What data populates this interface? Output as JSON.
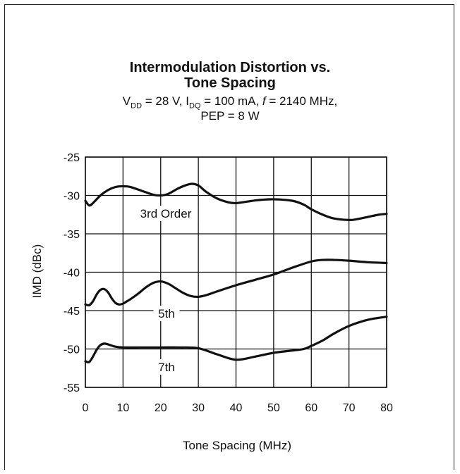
{
  "chart_data": {
    "type": "line",
    "title_line1": "Intermodulation Distortion vs.",
    "title_line2": "Tone Spacing",
    "subtitle_line1": {
      "v": "V",
      "v_sub": "DD",
      "v_rest": " = 28 V, I",
      "i_sub": "DQ",
      "i_rest": " = 100 mA, ",
      "f": "f",
      "f_rest": " = 2140 MHz,"
    },
    "subtitle_line2": "PEP = 8 W",
    "xlabel": "Tone Spacing (MHz)",
    "ylabel": "IMD (dBc)",
    "xlim": [
      0,
      80
    ],
    "ylim": [
      -55,
      -25
    ],
    "xticks": [
      "0",
      "10",
      "20",
      "30",
      "40",
      "50",
      "60",
      "70",
      "80"
    ],
    "yticks": [
      "-25",
      "-30",
      "-35",
      "-40",
      "-45",
      "-50",
      "-55"
    ],
    "grid": true,
    "series": [
      {
        "name": "3rd Order",
        "x": [
          0,
          1,
          2,
          4,
          6,
          8,
          10,
          12,
          15,
          18,
          20,
          22,
          25,
          28,
          30,
          32,
          35,
          38,
          40,
          43,
          46,
          50,
          55,
          58,
          60,
          63,
          66,
          70,
          72,
          75,
          78,
          80
        ],
        "y": [
          -30.7,
          -31.3,
          -31.0,
          -30.0,
          -29.3,
          -28.9,
          -28.8,
          -28.9,
          -29.4,
          -29.9,
          -30.0,
          -29.8,
          -29.0,
          -28.5,
          -28.7,
          -29.5,
          -30.4,
          -30.9,
          -31.0,
          -30.8,
          -30.6,
          -30.5,
          -30.7,
          -31.2,
          -31.8,
          -32.5,
          -33.0,
          -33.2,
          -33.1,
          -32.8,
          -32.5,
          -32.4
        ]
      },
      {
        "name": "5th",
        "x": [
          0,
          1,
          2,
          3,
          4,
          5,
          6,
          7,
          8,
          9,
          10,
          11,
          12,
          14,
          16,
          18,
          20,
          22,
          24,
          26,
          28,
          30,
          32,
          35,
          40,
          45,
          50,
          55,
          60,
          63,
          66,
          70,
          75,
          80
        ],
        "y": [
          -44.2,
          -44.3,
          -43.8,
          -42.9,
          -42.3,
          -42.2,
          -42.6,
          -43.4,
          -44.0,
          -44.2,
          -44.1,
          -43.8,
          -43.5,
          -42.8,
          -42.0,
          -41.4,
          -41.2,
          -41.5,
          -42.1,
          -42.7,
          -43.1,
          -43.2,
          -43.0,
          -42.5,
          -41.7,
          -41.0,
          -40.3,
          -39.4,
          -38.6,
          -38.4,
          -38.4,
          -38.5,
          -38.7,
          -38.8
        ]
      },
      {
        "name": "7th",
        "x": [
          0,
          1,
          2,
          3,
          4,
          5,
          6,
          8,
          10,
          15,
          20,
          25,
          30,
          35,
          40,
          45,
          50,
          55,
          58,
          60,
          63,
          66,
          70,
          75,
          80
        ],
        "y": [
          -51.6,
          -51.7,
          -51.0,
          -50.1,
          -49.5,
          -49.3,
          -49.4,
          -49.7,
          -49.8,
          -49.8,
          -49.8,
          -49.8,
          -49.9,
          -50.7,
          -51.4,
          -51.0,
          -50.5,
          -50.2,
          -50.0,
          -49.6,
          -48.9,
          -48.0,
          -47.0,
          -46.2,
          -45.8
        ]
      }
    ]
  }
}
